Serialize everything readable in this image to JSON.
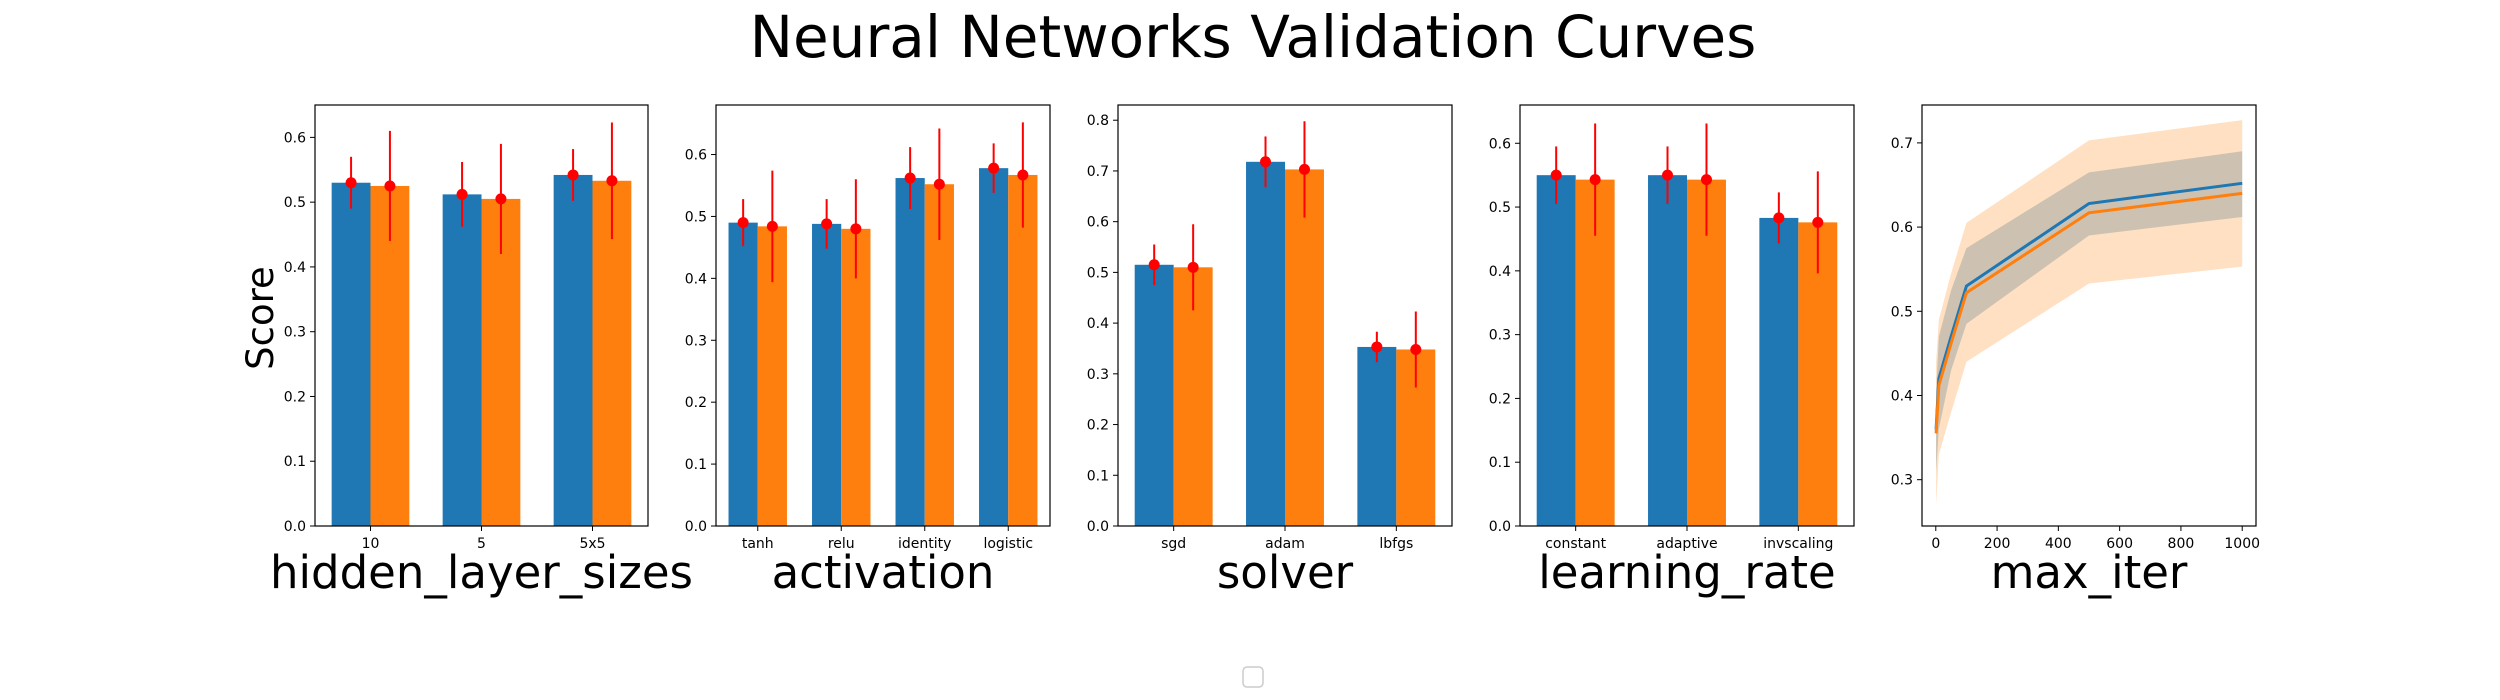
{
  "figure": {
    "title": "Neural Networks Validation Curves",
    "ylabel": "Score"
  },
  "colors": {
    "train": "#1f77b4",
    "test": "#ff7f0e",
    "error": "#ff0000",
    "band_test": "#ffbb78"
  },
  "chart_data": [
    {
      "type": "bar",
      "xlabel": "hidden_layer_sizes",
      "categories": [
        "10",
        "5",
        "5x5"
      ],
      "ylim": [
        0,
        0.65
      ],
      "yticks": [
        0.0,
        0.1,
        0.2,
        0.3,
        0.4,
        0.5,
        0.6
      ],
      "series": [
        {
          "values": [
            0.53,
            0.512,
            0.542
          ],
          "errors": [
            0.04,
            0.05,
            0.04
          ]
        },
        {
          "values": [
            0.525,
            0.505,
            0.533
          ],
          "errors": [
            0.085,
            0.085,
            0.09
          ]
        }
      ]
    },
    {
      "type": "bar",
      "xlabel": "activation",
      "categories": [
        "tanh",
        "relu",
        "identity",
        "logistic"
      ],
      "ylim": [
        0,
        0.68
      ],
      "yticks": [
        0.0,
        0.1,
        0.2,
        0.3,
        0.4,
        0.5,
        0.6
      ],
      "series": [
        {
          "values": [
            0.49,
            0.488,
            0.562,
            0.578
          ],
          "errors": [
            0.038,
            0.04,
            0.05,
            0.04
          ]
        },
        {
          "values": [
            0.484,
            0.48,
            0.552,
            0.567
          ],
          "errors": [
            0.09,
            0.08,
            0.09,
            0.085
          ]
        }
      ]
    },
    {
      "type": "bar",
      "xlabel": "solver",
      "categories": [
        "sgd",
        "adam",
        "lbfgs"
      ],
      "ylim": [
        0,
        0.83
      ],
      "yticks": [
        0.0,
        0.1,
        0.2,
        0.3,
        0.4,
        0.5,
        0.6,
        0.7,
        0.8
      ],
      "series": [
        {
          "values": [
            0.515,
            0.718,
            0.353
          ],
          "errors": [
            0.04,
            0.05,
            0.03
          ]
        },
        {
          "values": [
            0.51,
            0.703,
            0.348
          ],
          "errors": [
            0.085,
            0.095,
            0.075
          ]
        }
      ]
    },
    {
      "type": "bar",
      "xlabel": "learning_rate",
      "categories": [
        "constant",
        "adaptive",
        "invscaling"
      ],
      "ylim": [
        0,
        0.66
      ],
      "yticks": [
        0.0,
        0.1,
        0.2,
        0.3,
        0.4,
        0.5,
        0.6
      ],
      "series": [
        {
          "values": [
            0.55,
            0.55,
            0.483
          ],
          "errors": [
            0.045,
            0.045,
            0.04
          ]
        },
        {
          "values": [
            0.543,
            0.543,
            0.476
          ],
          "errors": [
            0.088,
            0.088,
            0.08
          ]
        }
      ]
    },
    {
      "type": "line",
      "xlabel": "max_iter",
      "xlim": [
        -45,
        1045
      ],
      "ylim": [
        0.245,
        0.745
      ],
      "xticks": [
        0,
        200,
        400,
        600,
        800,
        1000
      ],
      "yticks": [
        0.3,
        0.4,
        0.5,
        0.6,
        0.7
      ],
      "x": [
        1,
        10,
        50,
        100,
        500,
        1000
      ],
      "series": [
        {
          "values": [
            0.36,
            0.42,
            0.47,
            0.53,
            0.628,
            0.652
          ],
          "lower": [
            0.31,
            0.36,
            0.43,
            0.485,
            0.59,
            0.612
          ],
          "upper": [
            0.405,
            0.47,
            0.525,
            0.575,
            0.665,
            0.69
          ]
        },
        {
          "values": [
            0.355,
            0.412,
            0.462,
            0.522,
            0.617,
            0.64
          ],
          "lower": [
            0.27,
            0.33,
            0.38,
            0.44,
            0.533,
            0.553
          ],
          "upper": [
            0.44,
            0.49,
            0.545,
            0.605,
            0.703,
            0.727
          ]
        }
      ]
    }
  ]
}
